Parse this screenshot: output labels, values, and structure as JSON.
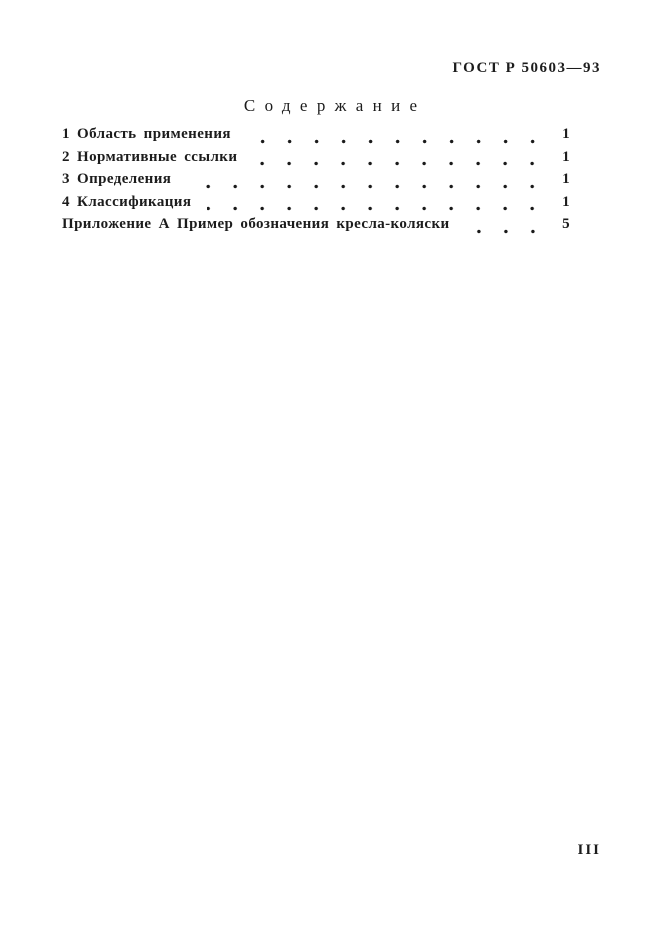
{
  "page": {
    "doc_code": "ГОСТ Р 50603—93",
    "heading": "Содержание",
    "folio": "III"
  },
  "toc": {
    "items": [
      {
        "label": "1 Область применения",
        "page": "1"
      },
      {
        "label": "2 Нормативные ссылки",
        "page": "1"
      },
      {
        "label": "3 Определения",
        "page": "1"
      },
      {
        "label": "4 Классификация",
        "page": "1"
      },
      {
        "label": "Приложение А Пример обозначения кресла-коляски",
        "page": "5"
      }
    ]
  }
}
